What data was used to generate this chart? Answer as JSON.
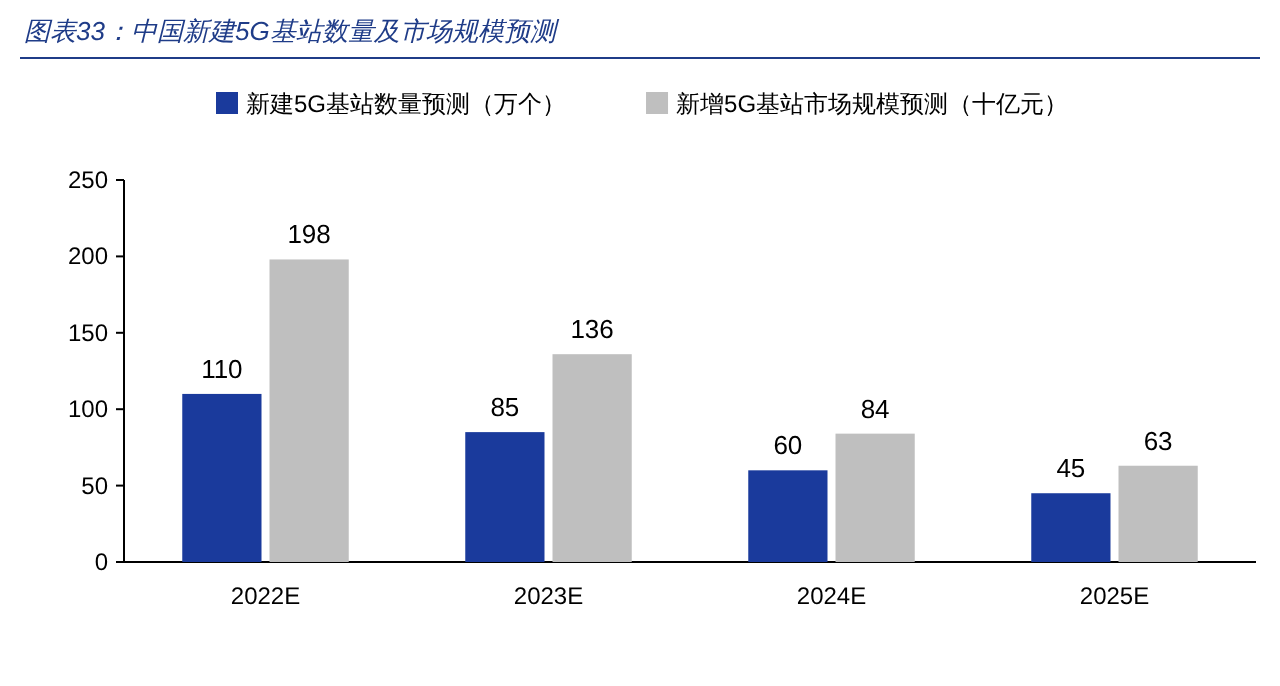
{
  "chart_data": {
    "type": "bar",
    "title": "图表33：中国新建5G基站数量及市场规模预测",
    "categories": [
      "2022E",
      "2023E",
      "2024E",
      "2025E"
    ],
    "series": [
      {
        "name": "新建5G基站数量预测（万个）",
        "color": "#1a3a9c",
        "values": [
          110,
          85,
          60,
          45
        ]
      },
      {
        "name": "新增5G基站市场规模预测（十亿元）",
        "color": "#bfbfbf",
        "values": [
          198,
          136,
          84,
          63
        ]
      }
    ],
    "ylim": [
      0,
      250
    ],
    "yticks": [
      0,
      50,
      100,
      150,
      200,
      250
    ],
    "data_labels": true,
    "legend": "top",
    "grid": false
  }
}
